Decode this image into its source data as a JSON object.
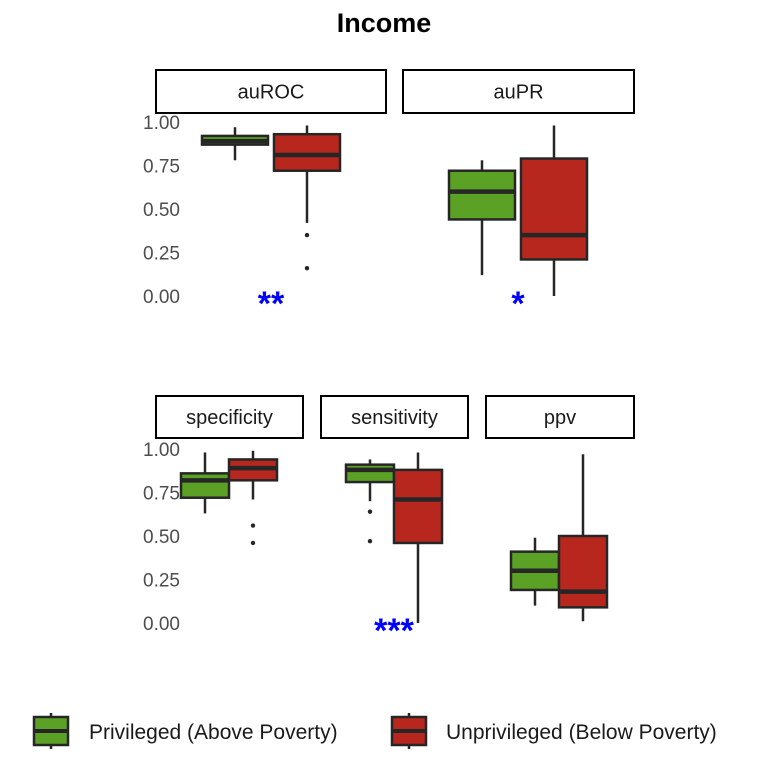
{
  "chart_data": {
    "type": "box",
    "title": "Income",
    "y_ticks": [
      "0.00",
      "0.25",
      "0.50",
      "0.75",
      "1.00"
    ],
    "ylim": [
      0,
      1
    ],
    "grid": false,
    "legend_position": "bottom",
    "series": [
      {
        "name": "Privileged (Above Poverty)",
        "color": "#5aa125"
      },
      {
        "name": "Unprivileged (Below Poverty)",
        "color": "#b7271e"
      }
    ],
    "panels": [
      {
        "label": "auROC",
        "significance": "**",
        "boxes": [
          {
            "series": 0,
            "min": 0.78,
            "q1": 0.87,
            "median": 0.89,
            "q3": 0.92,
            "max": 0.97,
            "outliers": []
          },
          {
            "series": 1,
            "min": 0.42,
            "q1": 0.72,
            "median": 0.81,
            "q3": 0.93,
            "max": 0.98,
            "outliers": [
              0.35,
              0.16
            ]
          }
        ]
      },
      {
        "label": "auPR",
        "significance": "*",
        "boxes": [
          {
            "series": 0,
            "min": 0.12,
            "q1": 0.44,
            "median": 0.6,
            "q3": 0.72,
            "max": 0.78,
            "outliers": []
          },
          {
            "series": 1,
            "min": 0.0,
            "q1": 0.21,
            "median": 0.35,
            "q3": 0.79,
            "max": 0.98,
            "outliers": []
          }
        ]
      },
      {
        "label": "specificity",
        "significance": "",
        "boxes": [
          {
            "series": 0,
            "min": 0.63,
            "q1": 0.72,
            "median": 0.82,
            "q3": 0.86,
            "max": 0.98,
            "outliers": []
          },
          {
            "series": 1,
            "min": 0.71,
            "q1": 0.82,
            "median": 0.89,
            "q3": 0.94,
            "max": 0.99,
            "outliers": [
              0.56,
              0.46
            ]
          }
        ]
      },
      {
        "label": "sensitivity",
        "significance": "***",
        "boxes": [
          {
            "series": 0,
            "min": 0.7,
            "q1": 0.81,
            "median": 0.88,
            "q3": 0.91,
            "max": 0.94,
            "outliers": [
              0.64,
              0.47
            ]
          },
          {
            "series": 1,
            "min": 0.0,
            "q1": 0.46,
            "median": 0.71,
            "q3": 0.88,
            "max": 0.98,
            "outliers": []
          }
        ]
      },
      {
        "label": "ppv",
        "significance": "",
        "boxes": [
          {
            "series": 0,
            "min": 0.1,
            "q1": 0.19,
            "median": 0.3,
            "q3": 0.41,
            "max": 0.49,
            "outliers": []
          },
          {
            "series": 1,
            "min": 0.01,
            "q1": 0.09,
            "median": 0.18,
            "q3": 0.5,
            "max": 0.97,
            "outliers": []
          }
        ]
      }
    ],
    "significance_color": "#0000ff"
  }
}
